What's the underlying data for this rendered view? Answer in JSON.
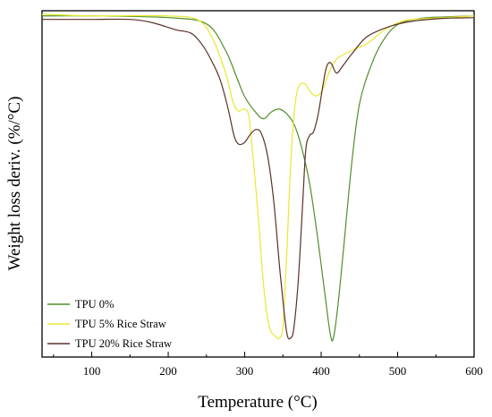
{
  "chart_data": {
    "type": "line",
    "xlabel": "Temperature (°C)",
    "ylabel": "Weight loss deriv. (%/°C)",
    "xlim": [
      35,
      600
    ],
    "ylim": [
      0,
      1
    ],
    "x_ticks": [
      100,
      200,
      300,
      400,
      500,
      600
    ],
    "y_ticks": [],
    "grid": false,
    "legend": {
      "placement": "bottom-left"
    },
    "series": [
      {
        "name": "TPU 0%",
        "color": "#4e8f2a",
        "points": [
          [
            35,
            0.985
          ],
          [
            100,
            0.985
          ],
          [
            200,
            0.98
          ],
          [
            250,
            0.962
          ],
          [
            275,
            0.885
          ],
          [
            290,
            0.805
          ],
          [
            300,
            0.752
          ],
          [
            315,
            0.705
          ],
          [
            325,
            0.688
          ],
          [
            335,
            0.708
          ],
          [
            345,
            0.716
          ],
          [
            355,
            0.702
          ],
          [
            365,
            0.67
          ],
          [
            375,
            0.6
          ],
          [
            385,
            0.5
          ],
          [
            395,
            0.35
          ],
          [
            405,
            0.18
          ],
          [
            412,
            0.065
          ],
          [
            416,
            0.055
          ],
          [
            422,
            0.15
          ],
          [
            430,
            0.33
          ],
          [
            440,
            0.56
          ],
          [
            450,
            0.73
          ],
          [
            465,
            0.84
          ],
          [
            480,
            0.91
          ],
          [
            500,
            0.96
          ],
          [
            530,
            0.978
          ],
          [
            560,
            0.982
          ],
          [
            600,
            0.985
          ]
        ]
      },
      {
        "name": "TPU 5% Rice Straw",
        "color": "#e8e830",
        "points": [
          [
            35,
            0.99
          ],
          [
            100,
            0.985
          ],
          [
            200,
            0.985
          ],
          [
            240,
            0.972
          ],
          [
            260,
            0.91
          ],
          [
            275,
            0.82
          ],
          [
            285,
            0.735
          ],
          [
            292,
            0.71
          ],
          [
            298,
            0.716
          ],
          [
            305,
            0.7
          ],
          [
            310,
            0.6
          ],
          [
            318,
            0.4
          ],
          [
            325,
            0.2
          ],
          [
            332,
            0.09
          ],
          [
            340,
            0.06
          ],
          [
            345,
            0.055
          ],
          [
            350,
            0.09
          ],
          [
            355,
            0.3
          ],
          [
            360,
            0.55
          ],
          [
            365,
            0.71
          ],
          [
            370,
            0.778
          ],
          [
            378,
            0.79
          ],
          [
            388,
            0.76
          ],
          [
            395,
            0.755
          ],
          [
            402,
            0.772
          ],
          [
            410,
            0.82
          ],
          [
            420,
            0.86
          ],
          [
            440,
            0.885
          ],
          [
            460,
            0.905
          ],
          [
            480,
            0.94
          ],
          [
            500,
            0.965
          ],
          [
            520,
            0.975
          ],
          [
            560,
            0.98
          ],
          [
            600,
            0.985
          ]
        ]
      },
      {
        "name": "TPU 20% Rice Straw",
        "color": "#5c3028",
        "points": [
          [
            35,
            0.975
          ],
          [
            100,
            0.975
          ],
          [
            150,
            0.975
          ],
          [
            180,
            0.965
          ],
          [
            210,
            0.945
          ],
          [
            230,
            0.935
          ],
          [
            245,
            0.9
          ],
          [
            258,
            0.85
          ],
          [
            268,
            0.8
          ],
          [
            278,
            0.72
          ],
          [
            286,
            0.64
          ],
          [
            292,
            0.615
          ],
          [
            300,
            0.62
          ],
          [
            308,
            0.645
          ],
          [
            315,
            0.657
          ],
          [
            322,
            0.645
          ],
          [
            330,
            0.58
          ],
          [
            338,
            0.45
          ],
          [
            346,
            0.25
          ],
          [
            352,
            0.12
          ],
          [
            356,
            0.06
          ],
          [
            360,
            0.055
          ],
          [
            364,
            0.08
          ],
          [
            370,
            0.22
          ],
          [
            376,
            0.45
          ],
          [
            380,
            0.6
          ],
          [
            385,
            0.64
          ],
          [
            390,
            0.65
          ],
          [
            396,
            0.7
          ],
          [
            402,
            0.78
          ],
          [
            406,
            0.83
          ],
          [
            410,
            0.85
          ],
          [
            414,
            0.845
          ],
          [
            420,
            0.82
          ],
          [
            428,
            0.84
          ],
          [
            440,
            0.875
          ],
          [
            460,
            0.925
          ],
          [
            490,
            0.955
          ],
          [
            520,
            0.97
          ],
          [
            560,
            0.978
          ],
          [
            600,
            0.98
          ]
        ]
      }
    ]
  }
}
